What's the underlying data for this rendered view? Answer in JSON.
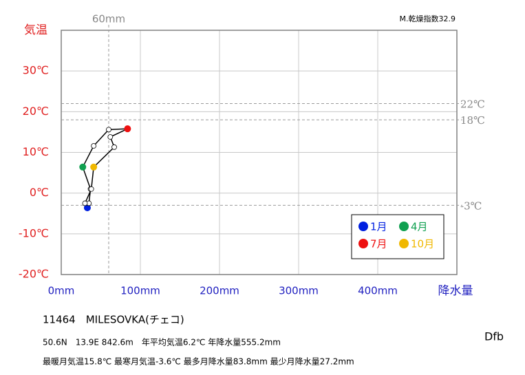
{
  "chart_data": {
    "type": "climograph",
    "y_axis_title": "気温",
    "x_axis_title": "降水量",
    "index_label": "M.乾燥指数32.9",
    "x": [
      33,
      35,
      37,
      27.2,
      41,
      60,
      83.8,
      62,
      67,
      41,
      38,
      30
    ],
    "values": [
      -3.6,
      -2.5,
      1.0,
      6.4,
      11.6,
      15.6,
      15.8,
      13.8,
      11.3,
      6.4,
      1.0,
      -2.5
    ],
    "point_colors": [
      "#0020e0",
      "#ffffff",
      "#ffffff",
      "#10a050",
      "#ffffff",
      "#ffffff",
      "#ee1010",
      "#ffffff",
      "#ffffff",
      "#f0b800",
      "#ffffff",
      "#ffffff"
    ],
    "line_color": "#000000",
    "xlim": [
      0,
      500
    ],
    "ylim": [
      -20,
      40
    ],
    "xticks": [
      {
        "value": 0,
        "label": "0mm"
      },
      {
        "value": 100,
        "label": "100mm"
      },
      {
        "value": 200,
        "label": "200mm"
      },
      {
        "value": 300,
        "label": "300mm"
      },
      {
        "value": 400,
        "label": "400mm"
      }
    ],
    "yticks": [
      {
        "value": -20,
        "label": "-20℃"
      },
      {
        "value": -10,
        "label": "-10℃"
      },
      {
        "value": 0,
        "label": "0℃"
      },
      {
        "value": 10,
        "label": "10℃"
      },
      {
        "value": 20,
        "label": "20℃"
      },
      {
        "value": 30,
        "label": "30℃"
      }
    ],
    "grid": true,
    "x_reference_lines": [
      {
        "value": 60,
        "label": "60mm"
      }
    ],
    "y_reference_lines": [
      {
        "value": 22,
        "label": "22℃"
      },
      {
        "value": 18,
        "label": "18℃"
      },
      {
        "value": -3,
        "label": "-3℃"
      }
    ],
    "legend": [
      {
        "label": "1月",
        "color": "#0020e0"
      },
      {
        "label": "4月",
        "color": "#10a050"
      },
      {
        "label": "7月",
        "color": "#ee1010"
      },
      {
        "label": "10月",
        "color": "#f0b800"
      }
    ],
    "station": "11464　MILESOVKA(チェコ)",
    "info_line_1": "50.6N　13.9E 842.6m　年平均気温6.2℃ 年降水量555.2mm",
    "info_line_2": "最暖月気温15.8℃ 最寒月気温-3.6℃ 最多月降水量83.8mm 最少月降水量27.2mm",
    "climate_class": "Dfb"
  }
}
